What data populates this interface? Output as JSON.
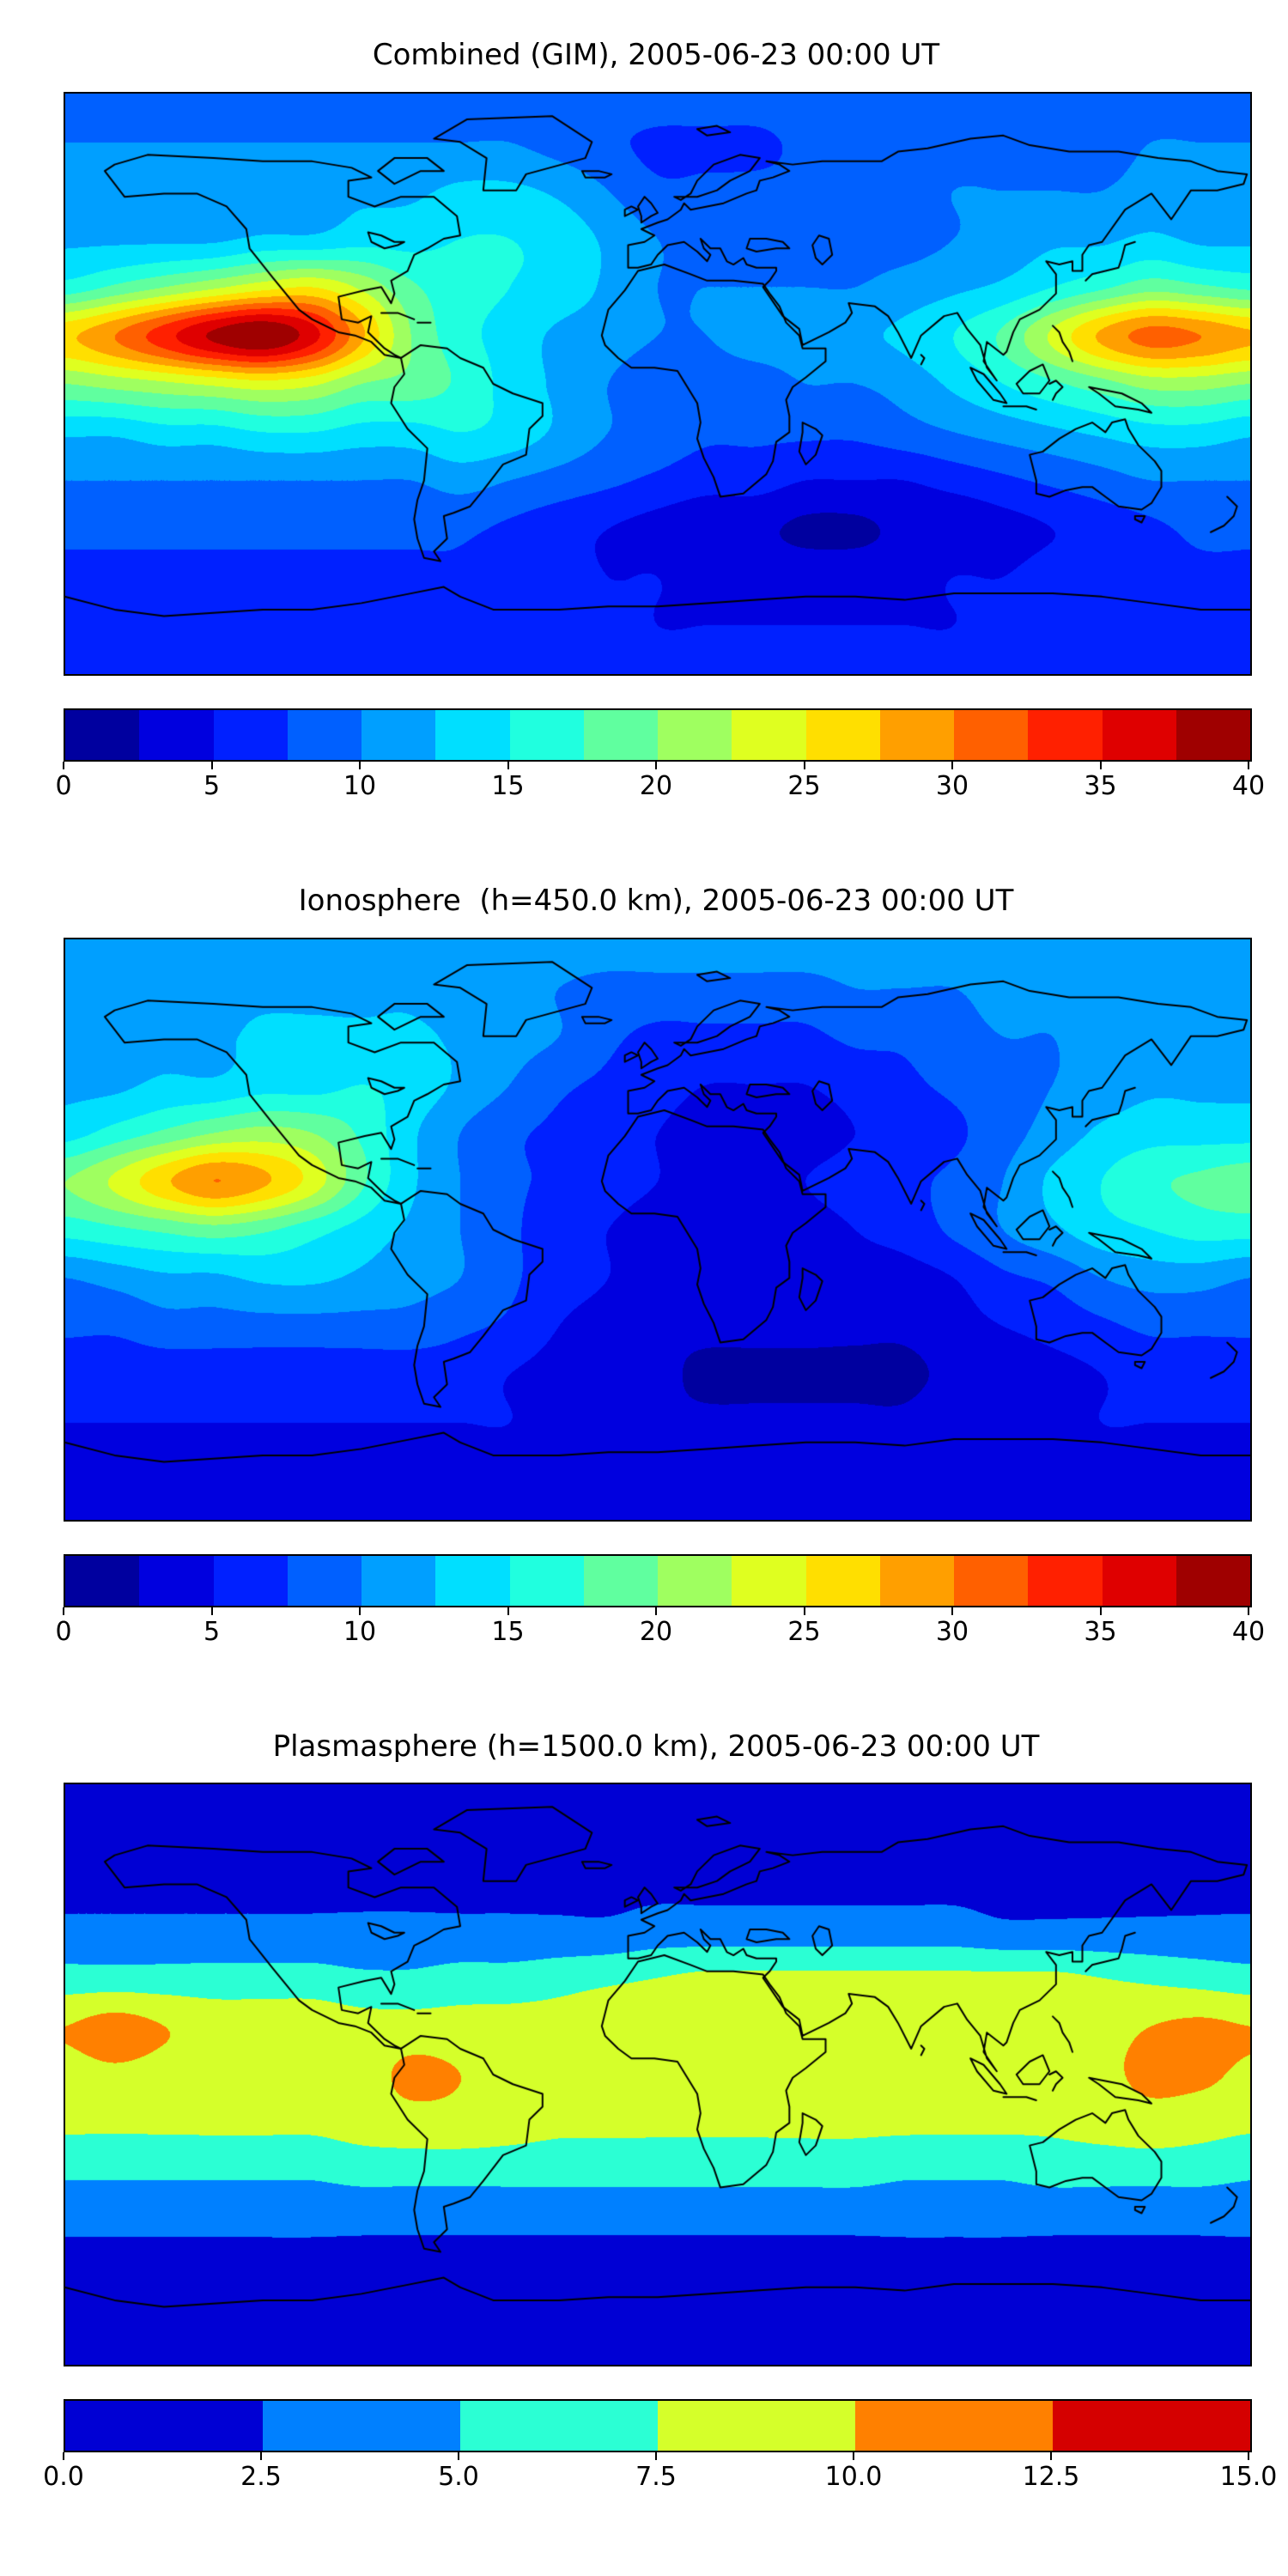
{
  "panels": [
    {
      "title": "Combined (GIM), 2005-06-23 00:00 UT",
      "colorbar": {
        "tick_labels": [
          "0",
          "5",
          "10",
          "15",
          "20",
          "25",
          "30",
          "35",
          "40"
        ]
      }
    },
    {
      "title": "Ionosphere  (h=450.0 km), 2005-06-23 00:00 UT",
      "colorbar": {
        "tick_labels": [
          "0",
          "5",
          "10",
          "15",
          "20",
          "25",
          "30",
          "35",
          "40"
        ]
      }
    },
    {
      "title": "Plasmasphere (h=1500.0 km), 2005-06-23 00:00 UT",
      "colorbar": {
        "tick_labels": [
          "0.0",
          "2.5",
          "5.0",
          "7.5",
          "10.0",
          "12.5",
          "15.0"
        ]
      }
    }
  ],
  "chart_data": [
    {
      "type": "heatmap",
      "subtype": "filled-contour-map",
      "title": "Combined (GIM), 2005-06-23 00:00 UT",
      "projection": "equirectangular",
      "colormap": "jet",
      "lon_range": [
        -180,
        180
      ],
      "lat_range": [
        -90,
        90
      ],
      "value_range": [
        0,
        40
      ],
      "n_intervals": 16,
      "contour_interval": 2.5,
      "colorbar_ticks": [
        0,
        5,
        10,
        15,
        20,
        25,
        30,
        35,
        40
      ],
      "grid_lons": [
        -180,
        -165,
        -150,
        -135,
        -120,
        -105,
        -90,
        -75,
        -60,
        -45,
        -30,
        -15,
        0,
        15,
        30,
        45,
        60,
        75,
        90,
        105,
        120,
        135,
        150,
        165,
        180
      ],
      "grid_lats": [
        90,
        75,
        60,
        45,
        30,
        15,
        0,
        -15,
        -30,
        -45,
        -60,
        -75,
        -90
      ],
      "values": [
        [
          9,
          9,
          9,
          9,
          9,
          9,
          9,
          9,
          9,
          9,
          9,
          9,
          9,
          9,
          9,
          9,
          9,
          9,
          9,
          9,
          9,
          9,
          9,
          9,
          9
        ],
        [
          10,
          10,
          10,
          10,
          10,
          10,
          10,
          10,
          10,
          10,
          9,
          8,
          7,
          7,
          7,
          8,
          8,
          9,
          9,
          9,
          9,
          9,
          10,
          10,
          10
        ],
        [
          11,
          11,
          11,
          11,
          11,
          12,
          12,
          12,
          13,
          13,
          12,
          10,
          8,
          8,
          8,
          8,
          9,
          9,
          10,
          10,
          10,
          10,
          11,
          11,
          11
        ],
        [
          12,
          12,
          12,
          12,
          13,
          13,
          14,
          14,
          15,
          15,
          14,
          12,
          10,
          9,
          8,
          8,
          9,
          9,
          10,
          11,
          12,
          12,
          13,
          12,
          12
        ],
        [
          16,
          18,
          20,
          22,
          24,
          25,
          22,
          18,
          16,
          15,
          14,
          12,
          10,
          10,
          10,
          10,
          10,
          11,
          12,
          13,
          15,
          17,
          19,
          18,
          17
        ],
        [
          27,
          30,
          34,
          38,
          40,
          36,
          28,
          20,
          16,
          14,
          12,
          11,
          10,
          10,
          11,
          11,
          12,
          13,
          15,
          18,
          23,
          28,
          31,
          30,
          28
        ],
        [
          20,
          21,
          22,
          23,
          24,
          23,
          20,
          19,
          17,
          14,
          12,
          10,
          9,
          9,
          9,
          10,
          10,
          11,
          13,
          15,
          17,
          19,
          21,
          21,
          20
        ],
        [
          13,
          13,
          14,
          14,
          15,
          15,
          14,
          14,
          15,
          14,
          12,
          10,
          9,
          8,
          8,
          8,
          8,
          9,
          10,
          11,
          12,
          13,
          14,
          14,
          13
        ],
        [
          10,
          10,
          10,
          10,
          10,
          10,
          10,
          10,
          11,
          10,
          9,
          8,
          7,
          6,
          6,
          5,
          5,
          5,
          6,
          7,
          8,
          9,
          10,
          10,
          10
        ],
        [
          8,
          8,
          8,
          8,
          8,
          8,
          8,
          8,
          8,
          7,
          6,
          5,
          4,
          3,
          3,
          2,
          2,
          3,
          3,
          4,
          5,
          6,
          7,
          8,
          8
        ],
        [
          7,
          7,
          7,
          7,
          7,
          7,
          7,
          7,
          7,
          6,
          6,
          5,
          5,
          4,
          4,
          4,
          4,
          4,
          5,
          5,
          6,
          6,
          7,
          7,
          7
        ],
        [
          6,
          6,
          6,
          6,
          6,
          6,
          6,
          6,
          6,
          6,
          6,
          6,
          5,
          5,
          5,
          5,
          5,
          5,
          5,
          6,
          6,
          6,
          6,
          6,
          6
        ],
        [
          6,
          6,
          6,
          6,
          6,
          6,
          6,
          6,
          6,
          6,
          6,
          6,
          6,
          6,
          6,
          6,
          6,
          6,
          6,
          6,
          6,
          6,
          6,
          6,
          6
        ]
      ]
    },
    {
      "type": "heatmap",
      "subtype": "filled-contour-map",
      "title": "Ionosphere  (h=450.0 km), 2005-06-23 00:00 UT",
      "projection": "equirectangular",
      "colormap": "jet",
      "lon_range": [
        -180,
        180
      ],
      "lat_range": [
        -90,
        90
      ],
      "value_range": [
        0,
        40
      ],
      "n_intervals": 16,
      "contour_interval": 2.5,
      "colorbar_ticks": [
        0,
        5,
        10,
        15,
        20,
        25,
        30,
        35,
        40
      ],
      "grid_lons": [
        -180,
        -165,
        -150,
        -135,
        -120,
        -105,
        -90,
        -75,
        -60,
        -45,
        -30,
        -15,
        0,
        15,
        30,
        45,
        60,
        75,
        90,
        105,
        120,
        135,
        150,
        165,
        180
      ],
      "grid_lats": [
        90,
        75,
        60,
        45,
        30,
        15,
        0,
        -15,
        -30,
        -45,
        -60,
        -75,
        -90
      ],
      "values": [
        [
          12,
          12,
          12,
          12,
          12,
          12,
          12,
          12,
          12,
          12,
          12,
          12,
          12,
          12,
          12,
          12,
          12,
          12,
          12,
          12,
          12,
          12,
          12,
          12,
          12
        ],
        [
          12,
          12,
          12,
          12,
          12,
          12,
          12,
          12,
          11,
          11,
          10,
          9,
          9,
          9,
          9,
          9,
          10,
          10,
          10,
          11,
          11,
          11,
          12,
          12,
          12
        ],
        [
          12,
          12,
          12,
          12,
          13,
          13,
          13,
          13,
          12,
          11,
          10,
          8,
          7,
          7,
          7,
          7,
          8,
          8,
          9,
          10,
          10,
          11,
          11,
          12,
          12
        ],
        [
          12,
          12,
          13,
          13,
          14,
          14,
          15,
          14,
          12,
          10,
          8,
          7,
          6,
          5,
          5,
          5,
          6,
          7,
          8,
          9,
          10,
          11,
          12,
          12,
          12
        ],
        [
          14,
          16,
          18,
          20,
          21,
          20,
          17,
          13,
          10,
          8,
          7,
          6,
          5,
          4,
          4,
          4,
          5,
          6,
          7,
          9,
          11,
          13,
          14,
          14,
          14
        ],
        [
          20,
          23,
          27,
          30,
          28,
          24,
          18,
          13,
          10,
          8,
          7,
          6,
          5,
          4,
          4,
          5,
          6,
          7,
          8,
          10,
          13,
          15,
          17,
          18,
          19
        ],
        [
          16,
          17,
          18,
          19,
          18,
          16,
          14,
          12,
          10,
          8,
          6,
          5,
          4,
          4,
          4,
          4,
          5,
          6,
          8,
          10,
          12,
          14,
          15,
          16,
          16
        ],
        [
          10,
          11,
          12,
          12,
          13,
          13,
          12,
          11,
          10,
          8,
          6,
          5,
          4,
          3,
          3,
          3,
          4,
          4,
          5,
          7,
          8,
          10,
          11,
          11,
          10
        ],
        [
          8,
          8,
          9,
          9,
          9,
          9,
          9,
          9,
          8,
          7,
          5,
          4,
          3,
          3,
          3,
          3,
          3,
          3,
          4,
          5,
          6,
          7,
          8,
          8,
          8
        ],
        [
          6,
          6,
          6,
          6,
          6,
          6,
          6,
          6,
          6,
          5,
          4,
          3,
          3,
          2,
          2,
          2,
          2,
          2,
          3,
          3,
          4,
          5,
          6,
          6,
          6
        ],
        [
          5,
          5,
          5,
          5,
          5,
          5,
          5,
          5,
          5,
          5,
          4,
          4,
          3,
          3,
          3,
          3,
          3,
          3,
          4,
          4,
          4,
          5,
          5,
          5,
          5
        ],
        [
          4,
          4,
          4,
          4,
          4,
          4,
          4,
          4,
          4,
          4,
          4,
          4,
          4,
          4,
          4,
          4,
          4,
          4,
          4,
          4,
          4,
          4,
          4,
          4,
          4
        ],
        [
          4,
          4,
          4,
          4,
          4,
          4,
          4,
          4,
          4,
          4,
          4,
          4,
          4,
          4,
          4,
          4,
          4,
          4,
          4,
          4,
          4,
          4,
          4,
          4,
          4
        ]
      ]
    },
    {
      "type": "heatmap",
      "subtype": "filled-contour-map",
      "title": "Plasmasphere (h=1500.0 km), 2005-06-23 00:00 UT",
      "projection": "equirectangular",
      "colormap": "jet",
      "lon_range": [
        -180,
        180
      ],
      "lat_range": [
        -90,
        90
      ],
      "value_range": [
        0,
        15
      ],
      "n_intervals": 6,
      "contour_interval": 2.5,
      "colorbar_ticks": [
        0,
        2.5,
        5,
        7.5,
        10,
        12.5,
        15
      ],
      "grid_lons": [
        -180,
        -165,
        -150,
        -135,
        -120,
        -105,
        -90,
        -75,
        -60,
        -45,
        -30,
        -15,
        0,
        15,
        30,
        45,
        60,
        75,
        90,
        105,
        120,
        135,
        150,
        165,
        180
      ],
      "grid_lats": [
        90,
        75,
        60,
        45,
        30,
        15,
        0,
        -15,
        -30,
        -45,
        -60,
        -75,
        -90
      ],
      "values": [
        [
          1.5,
          1.5,
          1.5,
          1.5,
          1.5,
          1.5,
          1.5,
          1.5,
          1.5,
          1.5,
          1.5,
          1.5,
          1.5,
          1.5,
          1.5,
          1.5,
          1.5,
          1.5,
          1.5,
          1.5,
          1.5,
          1.5,
          1.5,
          1.5,
          1.5
        ],
        [
          1.5,
          1.5,
          1.5,
          1.5,
          1.5,
          1.5,
          1.5,
          1.5,
          1.5,
          1.5,
          1.5,
          1.5,
          1.5,
          1.5,
          1.5,
          1.5,
          1.5,
          1.5,
          1.5,
          1.5,
          1.5,
          1.5,
          1.5,
          1.5,
          1.5
        ],
        [
          2,
          2,
          2,
          2,
          2,
          2,
          2,
          2,
          2,
          2,
          2,
          2,
          2,
          2,
          2,
          2,
          2,
          2,
          2,
          2,
          2,
          2,
          2,
          2,
          2
        ],
        [
          3,
          3,
          3,
          3,
          3,
          3,
          3,
          3,
          3,
          3,
          3,
          3,
          3.5,
          3.5,
          3.5,
          3.5,
          3.5,
          3.5,
          3.5,
          3,
          3,
          3,
          3,
          3,
          3
        ],
        [
          6,
          6,
          6,
          6,
          6,
          6,
          5.5,
          5.5,
          6,
          6,
          6.5,
          7,
          7.5,
          8,
          8,
          8,
          8,
          8,
          8,
          8,
          8,
          7.5,
          7,
          6.5,
          6
        ],
        [
          10,
          11,
          10,
          9,
          9,
          9,
          8.5,
          8.5,
          8.5,
          8.5,
          8.5,
          9,
          9,
          9,
          9,
          9,
          9,
          9,
          9,
          9,
          9,
          9,
          10,
          10.5,
          10
        ],
        [
          9,
          9.5,
          9,
          8.5,
          8.5,
          8.5,
          9,
          10.5,
          10,
          9,
          8.5,
          8.5,
          9,
          9,
          9,
          8.5,
          8.5,
          8.5,
          9,
          9,
          9,
          9.5,
          10.5,
          10.5,
          9.5
        ],
        [
          8,
          8,
          8,
          8,
          8,
          8,
          8.5,
          9,
          9,
          8.5,
          8,
          8,
          8,
          8,
          8,
          8,
          8,
          8,
          8,
          8,
          8,
          8.5,
          9,
          8.5,
          8
        ],
        [
          5.5,
          5.5,
          5.5,
          5.5,
          5.5,
          5.5,
          6,
          6,
          6,
          6,
          6,
          6,
          6,
          6,
          6,
          6,
          6,
          5.5,
          5.5,
          5.5,
          6,
          6,
          6,
          6,
          5.5
        ],
        [
          3,
          3,
          3,
          3,
          3,
          3,
          3,
          3,
          3,
          3,
          3,
          3,
          3,
          3,
          3,
          3,
          3,
          3,
          3,
          3,
          3,
          3,
          3,
          3,
          3
        ],
        [
          2,
          2,
          2,
          2,
          2,
          2,
          2,
          2,
          2,
          2,
          2,
          2,
          2,
          2,
          2,
          2,
          2,
          2,
          2,
          2,
          2,
          2,
          2,
          2,
          2
        ],
        [
          1.5,
          1.5,
          1.5,
          1.5,
          1.5,
          1.5,
          1.5,
          1.5,
          1.5,
          1.5,
          1.5,
          1.5,
          1.5,
          1.5,
          1.5,
          1.5,
          1.5,
          1.5,
          1.5,
          1.5,
          1.5,
          1.5,
          1.5,
          1.5,
          1.5
        ],
        [
          1.5,
          1.5,
          1.5,
          1.5,
          1.5,
          1.5,
          1.5,
          1.5,
          1.5,
          1.5,
          1.5,
          1.5,
          1.5,
          1.5,
          1.5,
          1.5,
          1.5,
          1.5,
          1.5,
          1.5,
          1.5,
          1.5,
          1.5,
          1.5,
          1.5
        ]
      ]
    }
  ]
}
